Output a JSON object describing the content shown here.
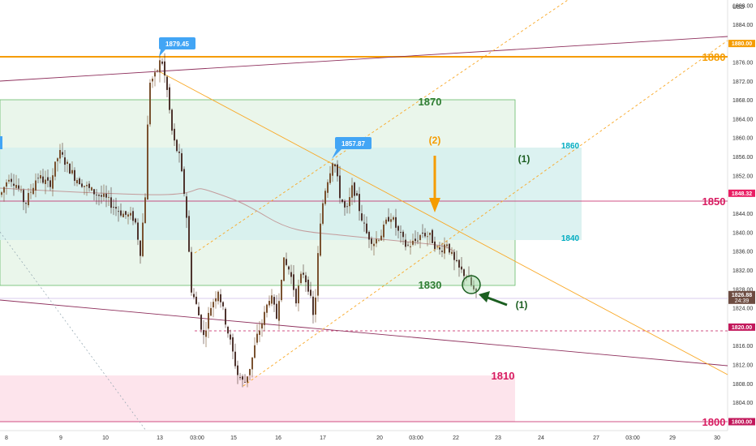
{
  "chart_data": {
    "type": "candlestick",
    "currency_label": "USD",
    "y_range": [
      1798,
      1892
    ],
    "y_ticks": [
      1888,
      1884,
      1880,
      1876,
      1872,
      1868,
      1864,
      1860,
      1856,
      1852,
      1848,
      1844,
      1840,
      1836,
      1832,
      1828,
      1824,
      1820,
      1816,
      1812,
      1808,
      1804,
      1800
    ],
    "y_tick_labels": [
      "1888.00",
      "1884.00",
      "1880.00",
      "1876.00",
      "1872.00",
      "1868.00",
      "1864.00",
      "1860.00",
      "1856.00",
      "1852.00",
      "1848.00",
      "1844.00",
      "1840.00",
      "1836.00",
      "1832.00",
      "1828.00",
      "1824.00",
      "1820.00",
      "1816.00",
      "1812.00",
      "1808.00",
      "1804.00",
      "1800.00"
    ],
    "x_labels": [
      "8",
      "9",
      "10",
      "13",
      "03:00",
      "15",
      "16",
      "17",
      "20",
      "03:00",
      "22",
      "23",
      "24",
      "27",
      "03:00",
      "29",
      "30"
    ],
    "price_tags": [
      {
        "value": 1880,
        "text": "1880.00",
        "color": "#f59c00"
      },
      {
        "value": 1848.32,
        "text": "1848.32",
        "color": "#e91e63"
      },
      {
        "value": 1826.88,
        "text": "1826.88",
        "sub": "24:39",
        "color": "#6d4c41"
      },
      {
        "value": 1820,
        "text": "1820.00",
        "color": "#c2185b"
      },
      {
        "value": 1800,
        "text": "1800.00",
        "color": "#c2185b"
      }
    ],
    "level_labels": [
      {
        "text": "1880",
        "color": "#f59c00"
      },
      {
        "text": "1850",
        "color": "#d81b60"
      },
      {
        "text": "1800",
        "color": "#d81b60"
      }
    ],
    "zones": [
      {
        "text": "1870",
        "color": "#2e7d32"
      },
      {
        "text": "1830",
        "color": "#2e7d32"
      },
      {
        "text": "1860",
        "color": "#00acc1"
      },
      {
        "text": "1840",
        "color": "#00acc1"
      },
      {
        "text": "1810",
        "color": "#d81b60"
      }
    ],
    "callouts": [
      {
        "text": "1879.45"
      },
      {
        "text": "1857.87"
      }
    ],
    "wave_labels": [
      {
        "text": "(2)",
        "color": "#f59c00"
      },
      {
        "text": "(1)",
        "color": "#1b5e20"
      },
      {
        "text": "(1)",
        "color": "#1b5e20"
      }
    ]
  }
}
